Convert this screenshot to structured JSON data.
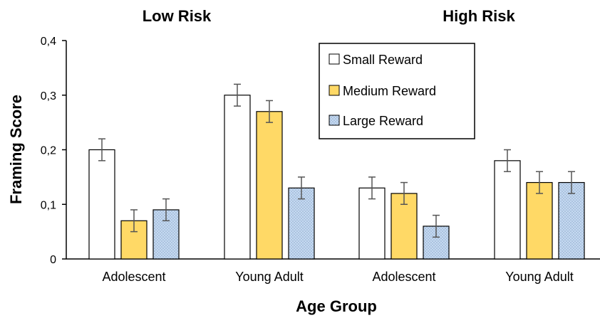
{
  "chart_data": {
    "type": "bar",
    "panel_titles": [
      "Low Risk",
      "High Risk"
    ],
    "categories": [
      "Adolescent",
      "Young Adult",
      "Adolescent",
      "Young Adult"
    ],
    "xlabel": "Age Group",
    "ylabel": "Framing Score",
    "ylim": [
      0,
      0.4
    ],
    "yticks": [
      "0",
      "0,1",
      "0,2",
      "0,3",
      "0,4"
    ],
    "yticks_values": [
      0,
      0.1,
      0.2,
      0.3,
      0.4
    ],
    "grid": false,
    "legend_position": "top-right",
    "series": [
      {
        "name": "Small Reward",
        "values": [
          0.2,
          0.3,
          0.13,
          0.18
        ],
        "errors": [
          0.02,
          0.02,
          0.02,
          0.02
        ],
        "color": "#ffffff",
        "pattern": "none"
      },
      {
        "name": "Medium Reward",
        "values": [
          0.07,
          0.27,
          0.12,
          0.14
        ],
        "errors": [
          0.02,
          0.02,
          0.02,
          0.02
        ],
        "color": "#ffd966",
        "pattern": "none"
      },
      {
        "name": "Large Reward",
        "values": [
          0.09,
          0.13,
          0.06,
          0.14
        ],
        "errors": [
          0.02,
          0.02,
          0.02,
          0.02
        ],
        "color": "#c5d9f1",
        "pattern": "dots"
      }
    ]
  }
}
